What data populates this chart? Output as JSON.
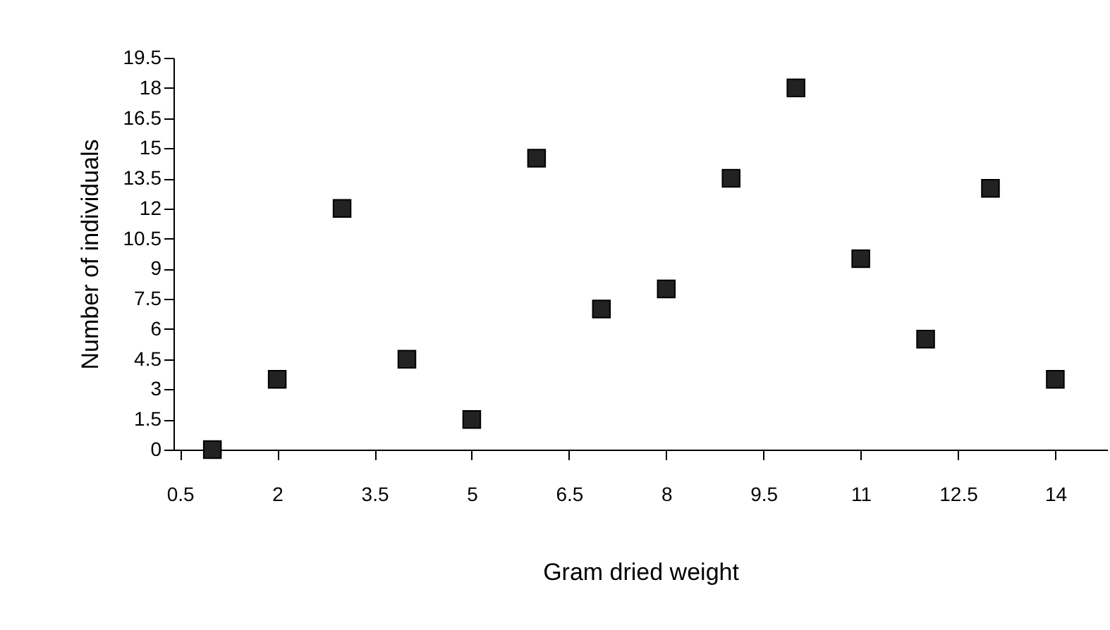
{
  "chart_data": {
    "type": "scatter",
    "xlabel": "Gram dried weight",
    "ylabel": "Number of individuals",
    "x": [
      1,
      2,
      3,
      4,
      5,
      6,
      7,
      8,
      9,
      10,
      11,
      12,
      13,
      14
    ],
    "series": [
      {
        "color": "#222222",
        "values": [
          0,
          3.5,
          12,
          4.5,
          1.5,
          14.5,
          7,
          8,
          13.5,
          18,
          9.5,
          5.5,
          13,
          3.5
        ]
      }
    ],
    "xlim": [
      0.4,
      14.8
    ],
    "xticks": [
      0.5,
      2,
      3.5,
      5,
      6.5,
      8,
      9.5,
      11,
      12.5,
      14
    ],
    "ylim": [
      0,
      19.5
    ],
    "yticks": [
      0,
      1.5,
      3,
      4.5,
      6,
      7.5,
      9,
      10.5,
      12,
      13.5,
      15,
      16.5,
      18,
      19.5
    ],
    "grid": false,
    "marker": "square"
  }
}
